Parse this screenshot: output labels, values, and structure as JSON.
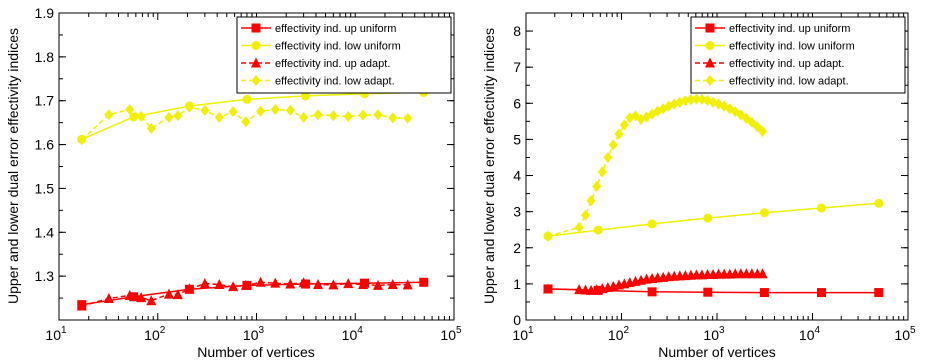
{
  "colors": {
    "red": "#ff0000",
    "yellow": "#f0f000",
    "axis": "#000000",
    "background": "#ffffff"
  },
  "chart_data": [
    {
      "type": "line",
      "xscale": "log",
      "xlim": [
        10,
        100000
      ],
      "ylim": [
        1.2,
        1.9
      ],
      "yticks": [
        "1.3",
        "1.4",
        "1.5",
        "1.6",
        "1.7",
        "1.8",
        "1.9"
      ],
      "xlabel": "Number of vertices",
      "ylabel": "Upper and lower dual error effectivity indices",
      "legend_position": "top-right",
      "series": [
        {
          "name": "effectivity ind. up uniform",
          "color": "#ff0000",
          "dash": "solid",
          "marker": "square",
          "x": [
            17,
            57,
            209,
            801,
            3137,
            12417,
            49409
          ],
          "y": [
            1.235,
            1.253,
            1.27,
            1.279,
            1.282,
            1.284,
            1.286
          ]
        },
        {
          "name": "effectivity ind. low uniform",
          "color": "#f0f000",
          "dash": "solid",
          "marker": "circle",
          "x": [
            17,
            57,
            209,
            801,
            3137,
            12417,
            49409
          ],
          "y": [
            1.612,
            1.663,
            1.688,
            1.703,
            1.711,
            1.716,
            1.719
          ]
        },
        {
          "name": "effectivity ind. up adapt.",
          "color": "#ff0000",
          "dash": "dashed",
          "marker": "triangle",
          "x": [
            17,
            32,
            52,
            68,
            86,
            130,
            160,
            210,
            300,
            420,
            580,
            780,
            1100,
            1550,
            2200,
            3000,
            4200,
            6000,
            8500,
            12000,
            17000,
            24000,
            34000
          ],
          "y": [
            1.232,
            1.249,
            1.256,
            1.251,
            1.244,
            1.259,
            1.258,
            1.271,
            1.283,
            1.281,
            1.276,
            1.279,
            1.286,
            1.284,
            1.282,
            1.285,
            1.281,
            1.28,
            1.283,
            1.281,
            1.279,
            1.281,
            1.28
          ]
        },
        {
          "name": "effectivity ind. low adapt.",
          "color": "#f0f000",
          "dash": "dashed",
          "marker": "diamond",
          "x": [
            17,
            32,
            52,
            68,
            86,
            130,
            160,
            210,
            300,
            420,
            580,
            780,
            1100,
            1550,
            2200,
            3000,
            4200,
            6000,
            8500,
            12000,
            17000,
            24000,
            34000
          ],
          "y": [
            1.611,
            1.668,
            1.68,
            1.664,
            1.637,
            1.662,
            1.666,
            1.685,
            1.678,
            1.662,
            1.675,
            1.652,
            1.676,
            1.68,
            1.678,
            1.662,
            1.668,
            1.666,
            1.664,
            1.667,
            1.668,
            1.661,
            1.66
          ]
        }
      ]
    },
    {
      "type": "line",
      "xscale": "log",
      "xlim": [
        10,
        100000
      ],
      "ylim": [
        0,
        8.5
      ],
      "yticks": [
        "0",
        "1",
        "2",
        "3",
        "4",
        "5",
        "6",
        "7",
        "8"
      ],
      "xlabel": "Number of vertices",
      "ylabel": "Upper and lower dual error effectivity indices",
      "legend_position": "top-right",
      "series": [
        {
          "name": "effectivity ind. up uniform",
          "color": "#ff0000",
          "dash": "solid",
          "marker": "square",
          "x": [
            17,
            57,
            209,
            801,
            3137,
            12417,
            49409
          ],
          "y": [
            0.86,
            0.82,
            0.78,
            0.77,
            0.76,
            0.76,
            0.76
          ]
        },
        {
          "name": "effectivity ind. low uniform",
          "color": "#f0f000",
          "dash": "solid",
          "marker": "circle",
          "x": [
            17,
            57,
            209,
            801,
            3137,
            12417,
            49409
          ],
          "y": [
            2.32,
            2.49,
            2.66,
            2.82,
            2.97,
            3.1,
            3.23
          ]
        },
        {
          "name": "effectivity ind. up adapt.",
          "color": "#ff0000",
          "dash": "dashed",
          "marker": "triangle",
          "x": [
            17,
            36,
            42,
            48,
            55,
            63,
            72,
            82,
            94,
            107,
            122,
            140,
            160,
            183,
            209,
            239,
            273,
            312,
            357,
            408,
            466,
            533,
            609,
            696,
            796,
            910,
            1040,
            1189,
            1359,
            1553,
            1775,
            2029,
            2319,
            2650,
            3000
          ],
          "y": [
            0.86,
            0.84,
            0.83,
            0.82,
            0.84,
            0.87,
            0.9,
            0.93,
            0.97,
            1.0,
            1.04,
            1.07,
            1.1,
            1.13,
            1.15,
            1.17,
            1.18,
            1.2,
            1.21,
            1.22,
            1.23,
            1.24,
            1.25,
            1.25,
            1.26,
            1.26,
            1.27,
            1.27,
            1.27,
            1.28,
            1.28,
            1.28,
            1.28,
            1.28,
            1.28
          ]
        },
        {
          "name": "effectivity ind. low adapt.",
          "color": "#f0f000",
          "dash": "dashed",
          "marker": "diamond",
          "x": [
            17,
            36,
            42,
            48,
            55,
            63,
            72,
            82,
            94,
            107,
            122,
            140,
            160,
            183,
            209,
            239,
            273,
            312,
            357,
            408,
            466,
            533,
            609,
            696,
            796,
            910,
            1040,
            1189,
            1359,
            1553,
            1775,
            2029,
            2319,
            2650,
            3000
          ],
          "y": [
            2.32,
            2.56,
            2.9,
            3.3,
            3.7,
            4.1,
            4.5,
            4.85,
            5.15,
            5.4,
            5.6,
            5.65,
            5.55,
            5.62,
            5.7,
            5.78,
            5.85,
            5.92,
            5.98,
            6.03,
            6.07,
            6.1,
            6.12,
            6.11,
            6.08,
            6.03,
            5.98,
            5.92,
            5.85,
            5.77,
            5.68,
            5.58,
            5.47,
            5.35,
            5.22
          ]
        }
      ]
    }
  ]
}
